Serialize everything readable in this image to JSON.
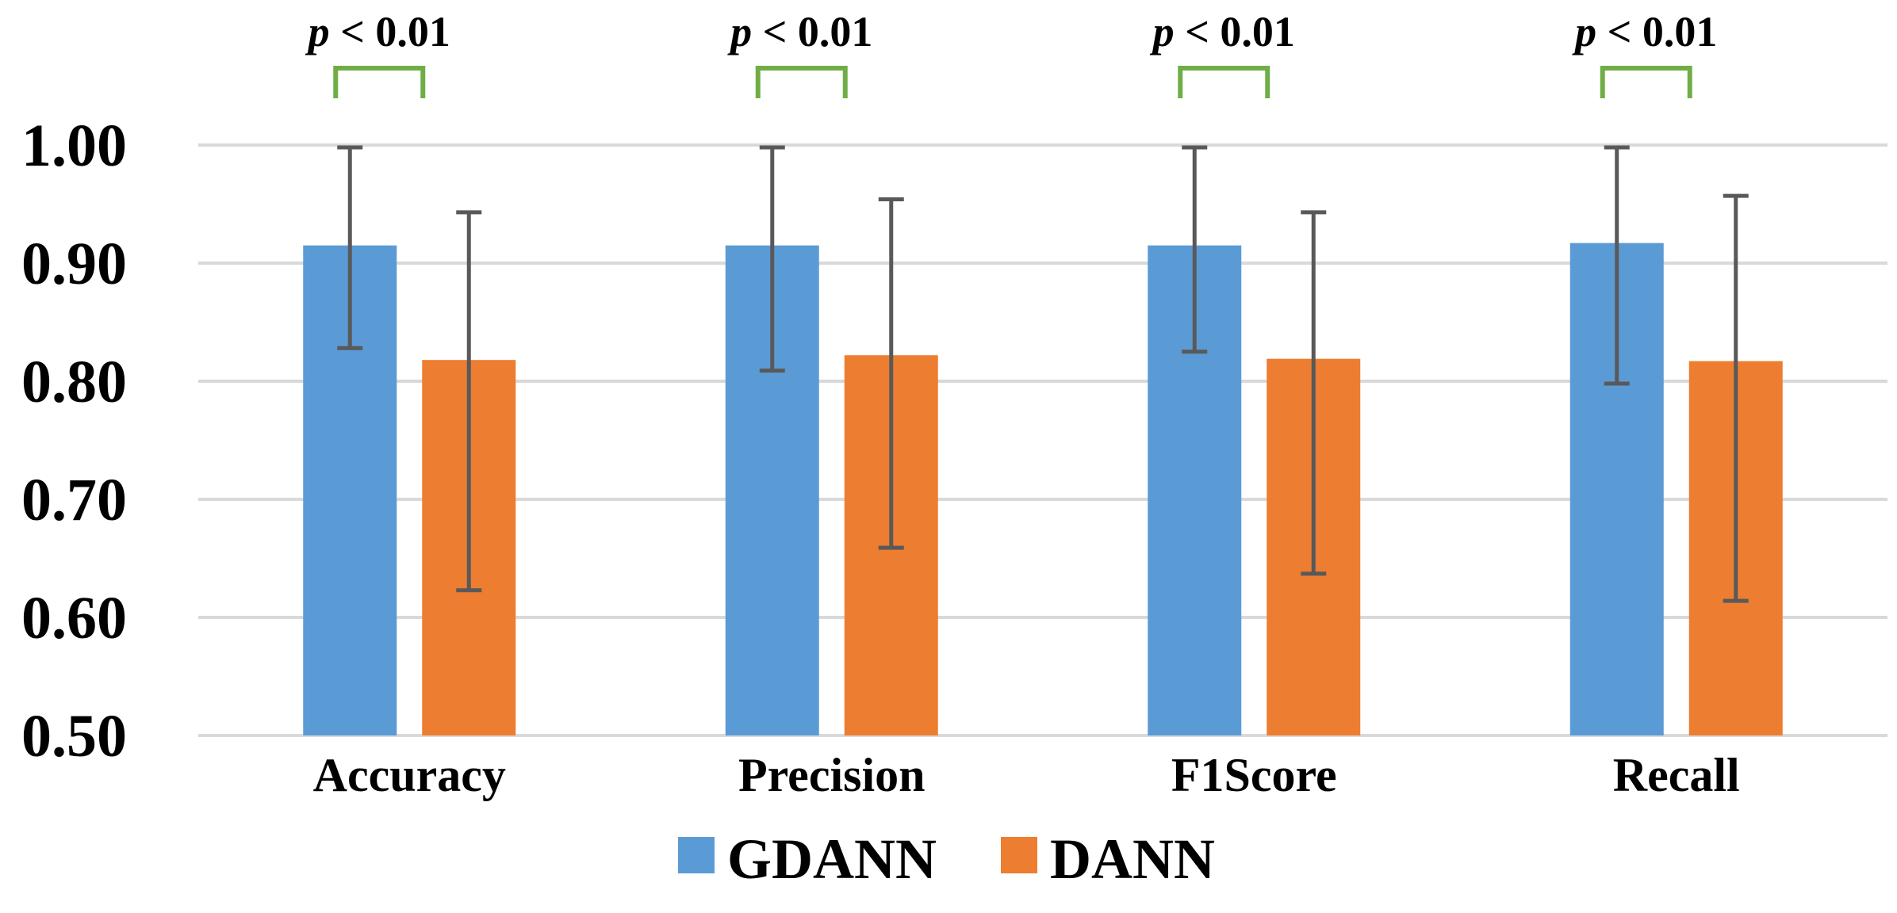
{
  "chart_data": {
    "type": "bar",
    "title": "",
    "xlabel": "",
    "ylabel": "",
    "ylim": [
      0.5,
      1.0
    ],
    "yticks": [
      "0.50",
      "0.60",
      "0.70",
      "0.80",
      "0.90",
      "1.00"
    ],
    "categories": [
      "Accuracy",
      "Precision",
      "F1Score",
      "Recall"
    ],
    "series": [
      {
        "name": "GDANN",
        "color": "#5b9bd5",
        "values": [
          0.915,
          0.915,
          0.915,
          0.917
        ],
        "err_low": [
          0.828,
          0.809,
          0.825,
          0.798
        ],
        "err_high": [
          0.998,
          0.998,
          0.998,
          0.998
        ]
      },
      {
        "name": "DANN",
        "color": "#ed7d31",
        "values": [
          0.818,
          0.822,
          0.819,
          0.817
        ],
        "err_low": [
          0.623,
          0.659,
          0.637,
          0.614
        ],
        "err_high": [
          0.943,
          0.954,
          0.943,
          0.957
        ]
      }
    ],
    "annotations": [
      "p < 0.01",
      "p < 0.01",
      "p < 0.01",
      "p < 0.01"
    ],
    "annotation_color": "#70ad47",
    "legend_position": "bottom-center",
    "grid": true
  }
}
